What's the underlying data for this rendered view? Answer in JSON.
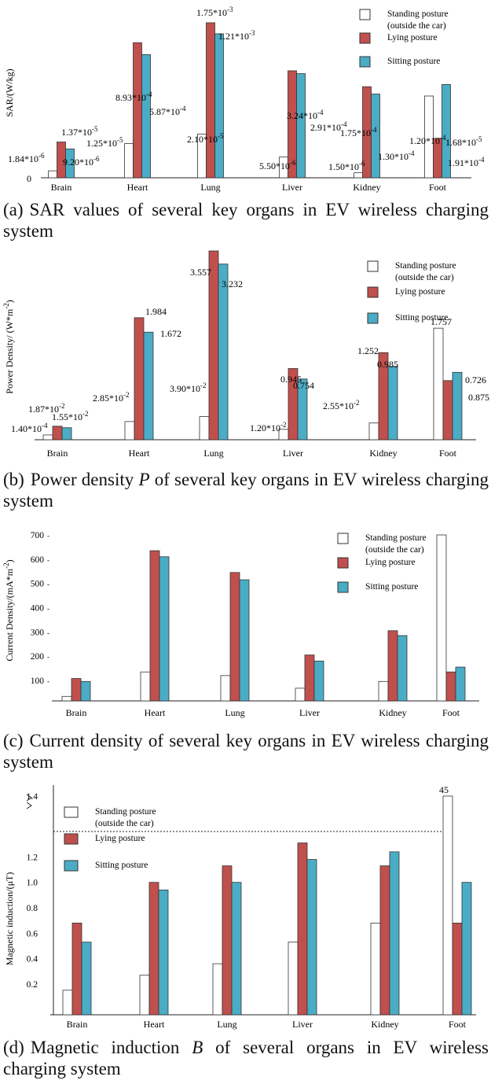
{
  "colors": {
    "standing": "#ffffff",
    "lying": "#c0504d",
    "sitting": "#4bacc6",
    "edge": "#333333"
  },
  "legend": [
    "Standing posture|(outside the car)",
    "Lying posture",
    "Sitting posture"
  ],
  "captions": [
    {
      "label": "(a)",
      "pre": "SAR values of several key organs in EV wireless charging system",
      "italic": "",
      "post": ""
    },
    {
      "label": "(b)",
      "pre": "Power density",
      "italic": "P",
      "post": "of several key organs in EV wireless charging system"
    },
    {
      "label": "(c)",
      "pre": "Current density of several key organs in EV wireless charging system",
      "italic": "",
      "post": ""
    },
    {
      "label": "(d)",
      "pre": "Magnetic induction",
      "italic": "B",
      "post": "of several organs in EV wireless charging system"
    }
  ],
  "chart_data": [
    {
      "type": "bar",
      "panel": "a",
      "ylabel": "SAR/(W/kg)",
      "ytick_labels": [
        "0"
      ],
      "categories": [
        "Brain",
        "Heart",
        "Lung",
        "Liver",
        "Kidney",
        "Foot"
      ],
      "series": [
        {
          "name": "Standing posture (outside the car)",
          "values": [
            1.84e-06,
            1.25e-05,
            2.1e-05,
            5.5e-06,
            1.5e-06,
            0.00012
          ]
        },
        {
          "name": "Lying posture",
          "values": [
            1.37e-05,
            0.000893,
            0.00175,
            0.000324,
            0.000175,
            1.68e-05
          ]
        },
        {
          "name": "Sitting posture",
          "values": [
            9.2e-06,
            0.000587,
            0.00121,
            0.000291,
            0.00013,
            0.000191
          ]
        }
      ],
      "data_labels": [
        [
          "1.84*10-6",
          "1.25*10-5",
          "2.10*10-5",
          "5.50*10-6",
          "1.50*10-6",
          "1.20*10-4"
        ],
        [
          "1.37*10-5",
          "8.93*10-4",
          "1.75*10-3",
          "3.24*10-4",
          "1.75*10-4",
          "1.68*10-5"
        ],
        [
          "9.20*10-6",
          "5.87*10-4",
          "1.21*10-3",
          "2.91*10-4",
          "1.30*10-4",
          "1.91*10-4"
        ]
      ]
    },
    {
      "type": "bar",
      "panel": "b",
      "ylabel": "Power Density/ (W*m-2)",
      "categories": [
        "Brain",
        "Heart",
        "Lung",
        "Liver",
        "Kidney",
        "Foot"
      ],
      "series": [
        {
          "name": "Standing posture (outside the car)",
          "values": [
            0.00014,
            0.0285,
            0.039,
            0.012,
            0.0255,
            1.757
          ]
        },
        {
          "name": "Lying posture",
          "values": [
            0.0187,
            1.984,
            3.557,
            0.945,
            1.252,
            0.726
          ]
        },
        {
          "name": "Sitting posture",
          "values": [
            0.0155,
            1.672,
            3.232,
            0.754,
            0.985,
            0.875
          ]
        }
      ],
      "data_labels": [
        [
          "1.40*10-4",
          "2.85*10-2",
          "3.90*10-2",
          "1.20*10-2",
          "2.55*10-2",
          "1.757"
        ],
        [
          "1.87*10-2",
          "1.984",
          "3.557",
          "0.945",
          "1.252",
          "0.726"
        ],
        [
          "1.55*10-2",
          "1.672",
          "3.232",
          "0.754",
          "0.985",
          "0.875"
        ]
      ]
    },
    {
      "type": "bar",
      "panel": "c",
      "ylabel": "Current Density/(mA*m-2)",
      "ylim": [
        0,
        700
      ],
      "yticks": [
        100,
        200,
        300,
        400,
        500,
        600,
        700
      ],
      "categories": [
        "Brain",
        "Heart",
        "Lung",
        "Liver",
        "Kidney",
        "Foot"
      ],
      "series": [
        {
          "name": "Standing posture (outside the car)",
          "values": [
            22,
            135,
            120,
            62,
            95,
            700
          ]
        },
        {
          "name": "Lying posture",
          "values": [
            108,
            635,
            545,
            205,
            305,
            135
          ]
        },
        {
          "name": "Sitting posture",
          "values": [
            95,
            610,
            515,
            180,
            285,
            155
          ]
        }
      ]
    },
    {
      "type": "bar",
      "panel": "d",
      "ylabel": "Magnetic induction/(μT)",
      "ylim": [
        0,
        1.4
      ],
      "yticks": [
        0.2,
        0.4,
        0.6,
        0.8,
        1.0,
        1.2,
        1.4
      ],
      "ytick_labels": [
        "0.2",
        "0.4",
        "0.6",
        "0.8",
        "1.0",
        "1.2",
        "1.4"
      ],
      "axis_break": true,
      "reference_line": 1.4,
      "categories": [
        "Brain",
        "Heart",
        "Lung",
        "Liver",
        "Kidney",
        "Foot"
      ],
      "series": [
        {
          "name": "Standing posture (outside the car)",
          "values": [
            0.16,
            0.27,
            0.36,
            0.53,
            0.68,
            45
          ]
        },
        {
          "name": "Lying posture",
          "values": [
            0.68,
            1.0,
            1.13,
            1.31,
            1.13,
            0.68
          ]
        },
        {
          "name": "Sitting posture",
          "values": [
            0.53,
            0.94,
            1.0,
            1.18,
            1.24,
            1.0
          ]
        }
      ],
      "data_labels_text": [
        "45"
      ]
    }
  ]
}
